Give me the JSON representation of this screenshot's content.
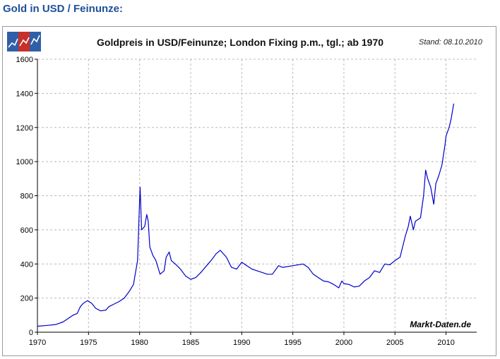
{
  "heading": "Gold in USD / Feinunze:",
  "chart_data": {
    "type": "line",
    "title": "Goldpreis in USD/Feinunze; London Fixing p.m., tgl.; ab 1970",
    "stand": "Stand: 08.10.2010",
    "source": "Markt-Daten.de",
    "xlabel": "",
    "ylabel": "",
    "xlim": [
      1970,
      2013
    ],
    "ylim": [
      0,
      1600
    ],
    "x_ticks": [
      1970,
      1975,
      1980,
      1985,
      1990,
      1995,
      2000,
      2005,
      2010
    ],
    "y_ticks": [
      0,
      200,
      400,
      600,
      800,
      1000,
      1200,
      1400,
      1600
    ],
    "grid": true,
    "series": [
      {
        "color": "#0000cc",
        "x": [
          1970.0,
          1971.0,
          1971.8,
          1972.5,
          1973.0,
          1973.5,
          1973.9,
          1974.2,
          1974.5,
          1974.9,
          1975.3,
          1975.7,
          1976.2,
          1976.7,
          1977.0,
          1977.5,
          1978.0,
          1978.5,
          1979.0,
          1979.4,
          1979.8,
          1979.95,
          1980.05,
          1980.2,
          1980.5,
          1980.7,
          1980.85,
          1981.0,
          1981.3,
          1981.6,
          1982.0,
          1982.4,
          1982.6,
          1982.9,
          1983.1,
          1983.5,
          1984.0,
          1984.5,
          1985.0,
          1985.5,
          1986.0,
          1986.7,
          1987.0,
          1987.5,
          1987.9,
          1988.5,
          1989.0,
          1989.5,
          1990.0,
          1990.5,
          1991.0,
          1991.5,
          1992.0,
          1992.5,
          1993.0,
          1993.6,
          1994.0,
          1995.0,
          1996.0,
          1996.5,
          1997.0,
          1997.5,
          1998.0,
          1998.5,
          1999.0,
          1999.5,
          1999.8,
          2000.0,
          2000.5,
          2001.0,
          2001.5,
          2002.0,
          2002.5,
          2003.0,
          2003.5,
          2004.0,
          2004.5,
          2005.0,
          2005.5,
          2006.0,
          2006.3,
          2006.5,
          2006.8,
          2007.0,
          2007.5,
          2007.8,
          2008.0,
          2008.2,
          2008.5,
          2008.8,
          2009.0,
          2009.3,
          2009.6,
          2009.9,
          2010.0,
          2010.3,
          2010.5,
          2010.75
        ],
        "y": [
          35,
          40,
          45,
          60,
          80,
          100,
          110,
          150,
          170,
          185,
          170,
          140,
          125,
          130,
          150,
          165,
          180,
          200,
          240,
          280,
          420,
          680,
          850,
          600,
          620,
          690,
          650,
          500,
          450,
          420,
          340,
          360,
          440,
          470,
          420,
          400,
          370,
          330,
          310,
          320,
          350,
          400,
          420,
          460,
          480,
          440,
          380,
          370,
          410,
          390,
          370,
          360,
          350,
          340,
          340,
          390,
          380,
          390,
          400,
          380,
          340,
          320,
          300,
          295,
          280,
          260,
          300,
          285,
          280,
          265,
          270,
          300,
          320,
          360,
          350,
          400,
          395,
          420,
          440,
          560,
          620,
          680,
          600,
          650,
          670,
          800,
          950,
          900,
          850,
          750,
          870,
          920,
          980,
          1100,
          1150,
          1200,
          1250,
          1340
        ]
      }
    ]
  }
}
